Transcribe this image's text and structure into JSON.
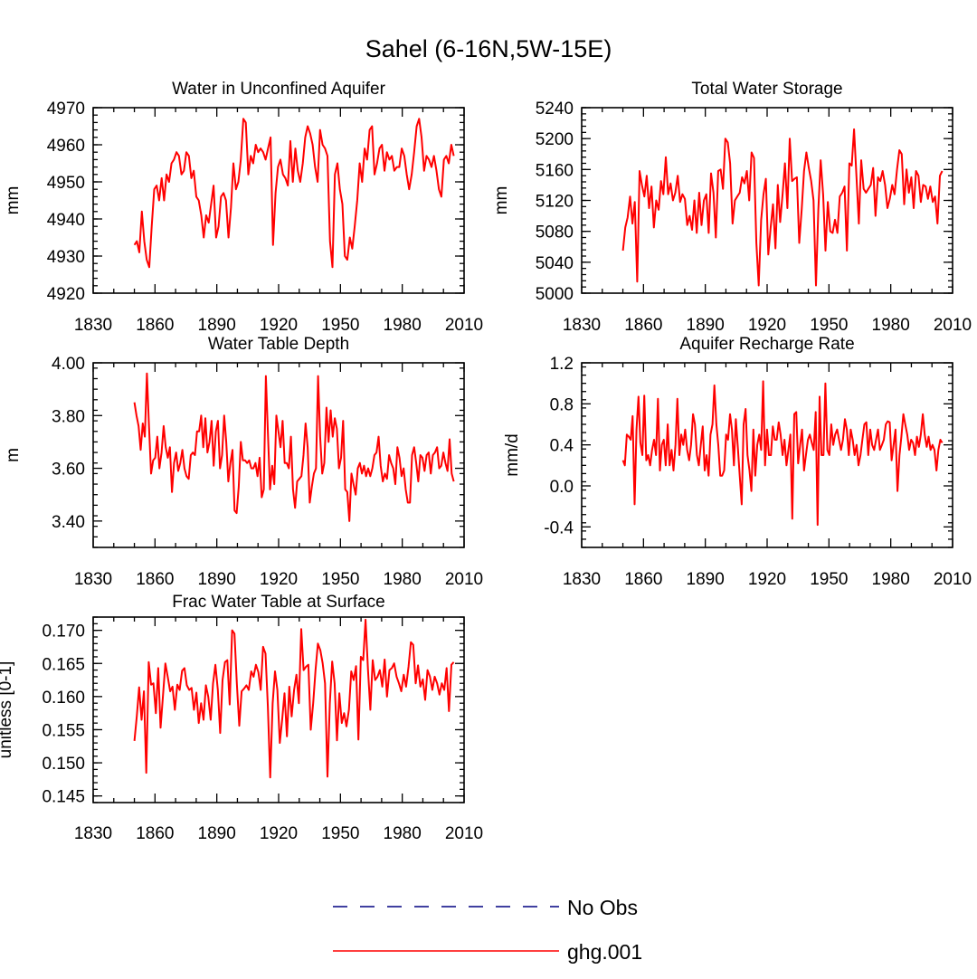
{
  "figure_title": "Sahel (6-16N,5W-15E)",
  "legend": {
    "entries": [
      {
        "label": "No Obs",
        "color": "#000080",
        "style": "dashed"
      },
      {
        "label": "ghg.001",
        "color": "#ff0000",
        "style": "solid"
      }
    ]
  },
  "chart_data": [
    {
      "type": "line",
      "title": "Water in Unconfined Aquifer",
      "xlabel": "",
      "ylabel": "mm",
      "xlim": [
        1830,
        2010
      ],
      "ylim": [
        4920,
        4970
      ],
      "xticks": [
        1830,
        1860,
        1890,
        1920,
        1950,
        1980,
        2010
      ],
      "yticks": [
        4920,
        4930,
        4940,
        4950,
        4960,
        4970
      ],
      "ytick_labels": [
        "4920",
        "4930",
        "4940",
        "4950",
        "4960",
        "4970"
      ],
      "xtick_labels": [
        "1830",
        "1860",
        "1890",
        "1920",
        "1950",
        "1980",
        "2010"
      ],
      "series": [
        {
          "name": "ghg.001",
          "color": "#ff0000",
          "x_start": 1850,
          "values": [
            4933,
            4934,
            4931,
            4942,
            4934,
            4929,
            4927,
            4938,
            4948,
            4949,
            4945,
            4951,
            4945,
            4952,
            4950,
            4955,
            4956,
            4958,
            4957,
            4952,
            4953,
            4958,
            4957,
            4951,
            4953,
            4946,
            4945,
            4941,
            4935,
            4941,
            4939,
            4944,
            4949,
            4935,
            4938,
            4946,
            4947,
            4945,
            4935,
            4943,
            4955,
            4948,
            4950,
            4956,
            4967,
            4966,
            4952,
            4957,
            4955,
            4960,
            4958,
            4959,
            4958,
            4956,
            4959,
            4962,
            4933,
            4947,
            4954,
            4956,
            4952,
            4951,
            4949,
            4961,
            4950,
            4959,
            4953,
            4950,
            4955,
            4962,
            4965,
            4963,
            4960,
            4954,
            4950,
            4964,
            4960,
            4959,
            4957,
            4934,
            4927,
            4952,
            4955,
            4948,
            4944,
            4930,
            4929,
            4935,
            4932,
            4938,
            4945,
            4955,
            4950,
            4959,
            4956,
            4964,
            4965,
            4952,
            4955,
            4959,
            4960,
            4953,
            4958,
            4956,
            4957,
            4953,
            4954,
            4954,
            4959,
            4957,
            4952,
            4948,
            4952,
            4958,
            4965,
            4967,
            4962,
            4953,
            4957,
            4956,
            4954,
            4957,
            4953,
            4948,
            4946,
            4956,
            4957,
            4955,
            4960,
            4957
          ]
        }
      ]
    },
    {
      "type": "line",
      "title": "Total Water Storage",
      "xlabel": "",
      "ylabel": "mm",
      "xlim": [
        1830,
        2010
      ],
      "ylim": [
        5000,
        5240
      ],
      "xticks": [
        1830,
        1860,
        1890,
        1920,
        1950,
        1980,
        2010
      ],
      "yticks": [
        5000,
        5040,
        5080,
        5120,
        5160,
        5200,
        5240
      ],
      "ytick_labels": [
        "5000",
        "5040",
        "5080",
        "5120",
        "5160",
        "5200",
        "5240"
      ],
      "xtick_labels": [
        "1830",
        "1860",
        "1890",
        "1920",
        "1950",
        "1980",
        "2010"
      ],
      "series": [
        {
          "name": "ghg.001",
          "color": "#ff0000",
          "x_start": 1850,
          "values": [
            5055,
            5085,
            5098,
            5125,
            5090,
            5118,
            5015,
            5158,
            5140,
            5125,
            5152,
            5110,
            5138,
            5085,
            5120,
            5108,
            5145,
            5128,
            5176,
            5128,
            5142,
            5120,
            5130,
            5152,
            5118,
            5128,
            5122,
            5088,
            5100,
            5082,
            5120,
            5078,
            5130,
            5088,
            5120,
            5128,
            5078,
            5155,
            5130,
            5072,
            5158,
            5160,
            5135,
            5200,
            5195,
            5168,
            5090,
            5120,
            5125,
            5130,
            5150,
            5142,
            5158,
            5120,
            5182,
            5175,
            5065,
            5010,
            5095,
            5128,
            5148,
            5050,
            5085,
            5115,
            5058,
            5140,
            5092,
            5128,
            5168,
            5110,
            5200,
            5145,
            5148,
            5150,
            5065,
            5108,
            5158,
            5182,
            5162,
            5145,
            5120,
            5010,
            5108,
            5172,
            5128,
            5055,
            5118,
            5080,
            5078,
            5095,
            5078,
            5125,
            5130,
            5138,
            5055,
            5168,
            5165,
            5212,
            5150,
            5090,
            5172,
            5135,
            5130,
            5135,
            5140,
            5162,
            5100,
            5150,
            5145,
            5158,
            5140,
            5110,
            5122,
            5140,
            5128,
            5160,
            5185,
            5180,
            5115,
            5160,
            5130,
            5150,
            5110,
            5158,
            5152,
            5118,
            5140,
            5138,
            5122,
            5138,
            5118,
            5125,
            5090,
            5152,
            5158
          ]
        }
      ]
    },
    {
      "type": "line",
      "title": "Water Table Depth",
      "xlabel": "",
      "ylabel": "m",
      "xlim": [
        1830,
        2010
      ],
      "ylim": [
        3.3,
        4.0
      ],
      "xticks": [
        1830,
        1860,
        1890,
        1920,
        1950,
        1980,
        2010
      ],
      "yticks": [
        3.4,
        3.6,
        3.8,
        4.0
      ],
      "ytick_labels": [
        "3.40",
        "3.60",
        "3.80",
        "4.00"
      ],
      "xtick_labels": [
        "1830",
        "1860",
        "1890",
        "1920",
        "1950",
        "1980",
        "2010"
      ],
      "series": [
        {
          "name": "ghg.001",
          "color": "#ff0000",
          "x_start": 1850,
          "values": [
            3.85,
            3.8,
            3.76,
            3.67,
            3.77,
            3.72,
            3.96,
            3.76,
            3.58,
            3.63,
            3.64,
            3.72,
            3.6,
            3.66,
            3.76,
            3.68,
            3.64,
            3.68,
            3.51,
            3.62,
            3.66,
            3.59,
            3.62,
            3.67,
            3.6,
            3.57,
            3.56,
            3.65,
            3.66,
            3.65,
            3.74,
            3.74,
            3.8,
            3.68,
            3.79,
            3.66,
            3.7,
            3.78,
            3.61,
            3.74,
            3.78,
            3.6,
            3.65,
            3.8,
            3.7,
            3.55,
            3.62,
            3.67,
            3.44,
            3.43,
            3.53,
            3.7,
            3.63,
            3.63,
            3.62,
            3.63,
            3.6,
            3.6,
            3.62,
            3.57,
            3.64,
            3.49,
            3.52,
            3.95,
            3.73,
            3.52,
            3.61,
            3.54,
            3.8,
            3.74,
            3.68,
            3.78,
            3.62,
            3.62,
            3.6,
            3.72,
            3.52,
            3.45,
            3.55,
            3.56,
            3.57,
            3.65,
            3.77,
            3.68,
            3.47,
            3.53,
            3.58,
            3.6,
            3.95,
            3.72,
            3.58,
            3.62,
            3.83,
            3.7,
            3.82,
            3.72,
            3.79,
            3.75,
            3.6,
            3.64,
            3.78,
            3.52,
            3.51,
            3.4,
            3.58,
            3.54,
            3.5,
            3.6,
            3.62,
            3.58,
            3.61,
            3.57,
            3.6,
            3.57,
            3.6,
            3.65,
            3.66,
            3.72,
            3.61,
            3.55,
            3.58,
            3.56,
            3.65,
            3.62,
            3.6,
            3.54,
            3.68,
            3.64,
            3.57,
            3.6,
            3.52,
            3.47,
            3.47,
            3.65,
            3.68,
            3.62,
            3.55,
            3.65,
            3.64,
            3.59,
            3.65,
            3.66,
            3.58,
            3.65,
            3.66,
            3.68,
            3.6,
            3.61,
            3.66,
            3.62,
            3.59,
            3.71,
            3.58,
            3.55
          ]
        }
      ]
    },
    {
      "type": "line",
      "title": "Aquifer Recharge Rate",
      "xlabel": "",
      "ylabel": "mm/d",
      "xlim": [
        1830,
        2010
      ],
      "ylim": [
        -0.6,
        1.2
      ],
      "xticks": [
        1830,
        1860,
        1890,
        1920,
        1950,
        1980,
        2010
      ],
      "yticks": [
        -0.4,
        0.0,
        0.4,
        0.8,
        1.2
      ],
      "ytick_labels": [
        "-0.4",
        "0.0",
        "0.4",
        "0.8",
        "1.2"
      ],
      "xtick_labels": [
        "1830",
        "1860",
        "1890",
        "1920",
        "1950",
        "1980",
        "2010"
      ],
      "series": [
        {
          "name": "ghg.001",
          "color": "#ff0000",
          "x_start": 1850,
          "values": [
            0.25,
            0.2,
            0.5,
            0.48,
            0.45,
            0.68,
            -0.18,
            0.55,
            0.87,
            0.42,
            0.3,
            0.88,
            0.25,
            0.3,
            0.2,
            0.35,
            0.45,
            0.3,
            0.85,
            0.15,
            0.4,
            0.45,
            0.2,
            0.6,
            0.2,
            0.35,
            0.15,
            0.4,
            0.85,
            0.3,
            0.5,
            0.4,
            0.55,
            0.35,
            0.25,
            0.4,
            0.7,
            0.6,
            0.3,
            0.2,
            0.4,
            0.58,
            0.15,
            0.3,
            0.1,
            0.5,
            0.6,
            0.98,
            0.6,
            0.4,
            0.1,
            0.1,
            0.15,
            0.5,
            0.45,
            0.7,
            0.55,
            0.2,
            0.65,
            0.38,
            0.1,
            -0.18,
            0.6,
            0.75,
            0.3,
            0.15,
            -0.05,
            0.55,
            0.1,
            0.4,
            0.5,
            0.35,
            1.02,
            0.2,
            0.55,
            0.3,
            0.3,
            0.58,
            0.45,
            0.45,
            0.62,
            0.5,
            0.3,
            0.45,
            0.2,
            0.35,
            0.5,
            -0.32,
            0.7,
            0.72,
            0.22,
            0.4,
            0.55,
            0.15,
            0.3,
            0.45,
            0.5,
            0.42,
            0.35,
            0.72,
            -0.38,
            0.87,
            0.3,
            0.3,
            1.0,
            0.35,
            0.3,
            0.6,
            0.4,
            0.5,
            0.55,
            0.45,
            0.35,
            0.45,
            0.65,
            0.55,
            0.3,
            0.55,
            0.45,
            0.3,
            0.4,
            0.2,
            0.3,
            0.45,
            0.6,
            0.62,
            0.3,
            0.55,
            0.4,
            0.35,
            0.45,
            0.55,
            0.35,
            0.4,
            0.45,
            0.6,
            0.63,
            0.62,
            0.25,
            0.4,
            0.55,
            -0.05,
            0.3,
            0.48,
            0.7,
            0.6,
            0.5,
            0.35,
            0.45,
            0.42,
            0.3,
            0.48,
            0.38,
            0.5,
            0.7,
            0.5,
            0.38,
            0.48,
            0.35,
            0.4,
            0.35,
            0.15,
            0.35,
            0.45,
            0.42
          ]
        }
      ]
    },
    {
      "type": "line",
      "title": "Frac Water Table at Surface",
      "xlabel": "",
      "ylabel": "unitless [0-1]",
      "xlim": [
        1830,
        2010
      ],
      "ylim": [
        0.144,
        0.172
      ],
      "xticks": [
        1830,
        1860,
        1890,
        1920,
        1950,
        1980,
        2010
      ],
      "yticks": [
        0.145,
        0.15,
        0.155,
        0.16,
        0.165,
        0.17
      ],
      "ytick_labels": [
        "0.145",
        "0.150",
        "0.155",
        "0.160",
        "0.165",
        "0.170"
      ],
      "xtick_labels": [
        "1830",
        "1860",
        "1890",
        "1920",
        "1950",
        "1980",
        "2010"
      ],
      "series": [
        {
          "name": "ghg.001",
          "color": "#ff0000",
          "x_start": 1850,
          "values": [
            0.1533,
            0.157,
            0.1614,
            0.1565,
            0.1608,
            0.1485,
            0.1652,
            0.1618,
            0.162,
            0.1575,
            0.1643,
            0.1553,
            0.1602,
            0.165,
            0.163,
            0.1608,
            0.1615,
            0.158,
            0.1618,
            0.161,
            0.1639,
            0.1643,
            0.1617,
            0.161,
            0.1613,
            0.158,
            0.1606,
            0.156,
            0.159,
            0.1565,
            0.1617,
            0.16,
            0.1565,
            0.162,
            0.1648,
            0.161,
            0.1545,
            0.1625,
            0.1652,
            0.1655,
            0.1588,
            0.17,
            0.1695,
            0.162,
            0.1556,
            0.1608,
            0.1612,
            0.1617,
            0.161,
            0.1638,
            0.163,
            0.1648,
            0.1637,
            0.161,
            0.1675,
            0.1665,
            0.1585,
            0.1478,
            0.159,
            0.1638,
            0.161,
            0.153,
            0.1565,
            0.1605,
            0.154,
            0.1615,
            0.157,
            0.161,
            0.1633,
            0.159,
            0.1702,
            0.164,
            0.1645,
            0.1648,
            0.155,
            0.159,
            0.164,
            0.168,
            0.167,
            0.165,
            0.162,
            0.1479,
            0.159,
            0.1653,
            0.162,
            0.1534,
            0.1605,
            0.156,
            0.1575,
            0.1555,
            0.158,
            0.1638,
            0.1625,
            0.1646,
            0.1535,
            0.166,
            0.1655,
            0.1716,
            0.164,
            0.158,
            0.1655,
            0.1625,
            0.163,
            0.164,
            0.1615,
            0.1656,
            0.16,
            0.164,
            0.1643,
            0.165,
            0.163,
            0.162,
            0.1608,
            0.1633,
            0.1615,
            0.1645,
            0.1682,
            0.1678,
            0.162,
            0.1647,
            0.1615,
            0.1626,
            0.1595,
            0.164,
            0.163,
            0.161,
            0.163,
            0.162,
            0.1603,
            0.162,
            0.161,
            0.1643,
            0.1578,
            0.1648,
            0.1652
          ]
        }
      ]
    }
  ]
}
